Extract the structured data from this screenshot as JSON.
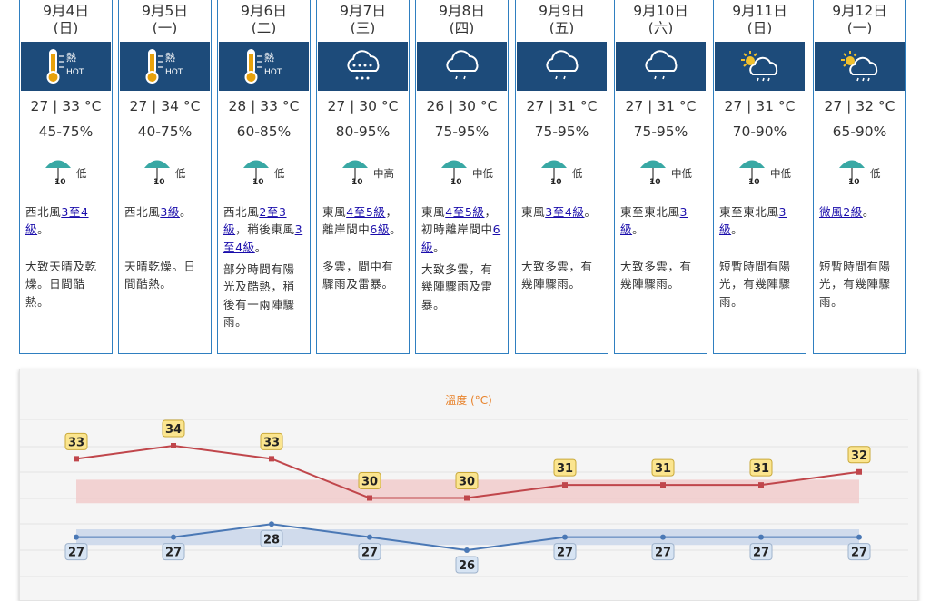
{
  "forecast": {
    "days": [
      {
        "date": "9月4日",
        "weekday": "(日)",
        "icon": "hot-thermometer-icon",
        "icon_label": "熱",
        "icon_sub": "HOT",
        "temp": "27 | 33 °C",
        "rh": "45-75%",
        "psr_level": "低",
        "psr_badge": "10",
        "wind": [
          {
            "t": "西北風"
          },
          {
            "t": "3至4",
            "link": true
          },
          {
            "t": "級",
            "link": true
          },
          {
            "t": "。"
          }
        ],
        "desc": "大致天晴及乾燥。日間酷熱。",
        "desc_top": 284
      },
      {
        "date": "9月5日",
        "weekday": "(一)",
        "icon": "hot-thermometer-icon",
        "icon_label": "熱",
        "icon_sub": "HOT",
        "temp": "27 | 34 °C",
        "rh": "40-75%",
        "psr_level": "低",
        "psr_badge": "10",
        "wind": [
          {
            "t": "西北風"
          },
          {
            "t": "3級",
            "link": true
          },
          {
            "t": "。"
          }
        ],
        "desc": "天晴乾燥。日間酷熱。",
        "desc_top": 284
      },
      {
        "date": "9月6日",
        "weekday": "(二)",
        "icon": "hot-thermometer-icon",
        "icon_label": "熱",
        "icon_sub": "HOT",
        "temp": "28 | 33 °C",
        "rh": "60-85%",
        "psr_level": "低",
        "psr_badge": "10",
        "wind": [
          {
            "t": "西北風"
          },
          {
            "t": "2至3",
            "link": true
          },
          {
            "t": "級",
            "link": true
          },
          {
            "t": "，稍後東風"
          },
          {
            "t": "3",
            "link": true
          },
          {
            "t": "至4級",
            "link": true
          },
          {
            "t": "。"
          }
        ],
        "desc": "部分時間有陽光及酷熱，稍後有一兩陣驟雨。",
        "desc_top": 287
      },
      {
        "date": "9月7日",
        "weekday": "(三)",
        "icon": "rain-cloud-icon",
        "temp": "27 | 30 °C",
        "rh": "80-95%",
        "psr_level": "中高",
        "psr_badge": "10",
        "wind": [
          {
            "t": "東風"
          },
          {
            "t": "4至5級",
            "link": true
          },
          {
            "t": "，離岸間中"
          },
          {
            "t": "6級",
            "link": true
          },
          {
            "t": "。"
          }
        ],
        "desc": "多雲，間中有驟雨及雷暴。",
        "desc_top": 284
      },
      {
        "date": "9月8日",
        "weekday": "(四)",
        "icon": "showers-cloud-icon",
        "temp": "26 | 30 °C",
        "rh": "75-95%",
        "psr_level": "中低",
        "psr_badge": "10",
        "wind": [
          {
            "t": "東風"
          },
          {
            "t": "4至5級",
            "link": true
          },
          {
            "t": "，初時離岸間中"
          },
          {
            "t": "6",
            "link": true
          },
          {
            "t": "級",
            "link": true
          },
          {
            "t": "。"
          }
        ],
        "desc": "大致多雲，有幾陣驟雨及雷暴。",
        "desc_top": 287
      },
      {
        "date": "9月9日",
        "weekday": "(五)",
        "icon": "showers-cloud-icon",
        "temp": "27 | 31 °C",
        "rh": "75-95%",
        "psr_level": "低",
        "psr_badge": "10",
        "wind": [
          {
            "t": "東風"
          },
          {
            "t": "3至4級",
            "link": true
          },
          {
            "t": "。"
          }
        ],
        "desc": "大致多雲，有幾陣驟雨。",
        "desc_top": 284
      },
      {
        "date": "9月10日",
        "weekday": "(六)",
        "icon": "showers-cloud-icon",
        "temp": "27 | 31 °C",
        "rh": "75-95%",
        "psr_level": "中低",
        "psr_badge": "10",
        "wind": [
          {
            "t": "東至東北風"
          },
          {
            "t": "3",
            "link": true
          },
          {
            "t": "級",
            "link": true
          },
          {
            "t": "。"
          }
        ],
        "desc": "大致多雲，有幾陣驟雨。",
        "desc_top": 284
      },
      {
        "date": "9月11日",
        "weekday": "(日)",
        "icon": "sun-showers-icon",
        "temp": "27 | 31 °C",
        "rh": "70-90%",
        "psr_level": "中低",
        "psr_badge": "10",
        "wind": [
          {
            "t": "東至東北風"
          },
          {
            "t": "3",
            "link": true
          },
          {
            "t": "級",
            "link": true
          },
          {
            "t": "。"
          }
        ],
        "desc": "短暫時間有陽光，有幾陣驟雨。",
        "desc_top": 284
      },
      {
        "date": "9月12日",
        "weekday": "(一)",
        "icon": "sun-showers-icon",
        "temp": "27 | 32 °C",
        "rh": "65-90%",
        "psr_level": "低",
        "psr_badge": "10",
        "wind": [
          {
            "t": "微風2級",
            "link": true
          },
          {
            "t": "。"
          }
        ],
        "desc": "短暫時間有陽光，有幾陣驟雨。",
        "desc_top": 284
      }
    ]
  },
  "temp_chart": {
    "title": "溫度 (°C)",
    "title_color": "#e8822a",
    "max_color": "#c0464b",
    "min_color": "#4a78b5",
    "max_band_color": "#f1c9c9",
    "min_band_color": "#c7d5ea",
    "label_max_bg": "#fbe58f",
    "label_min_bg": "#d7e4f3"
  },
  "chart_data": {
    "type": "line",
    "title": "溫度 (°C)",
    "x": [
      "9月4日",
      "9月5日",
      "9月6日",
      "9月7日",
      "9月8日",
      "9月9日",
      "9月10日",
      "9月11日",
      "9月12日"
    ],
    "ylim": [
      24,
      36
    ],
    "series": [
      {
        "values": [
          33,
          34,
          33,
          30,
          30,
          31,
          31,
          31,
          32
        ]
      },
      {
        "values": [
          27,
          27,
          28,
          27,
          26,
          27,
          27,
          27,
          27
        ]
      }
    ]
  }
}
